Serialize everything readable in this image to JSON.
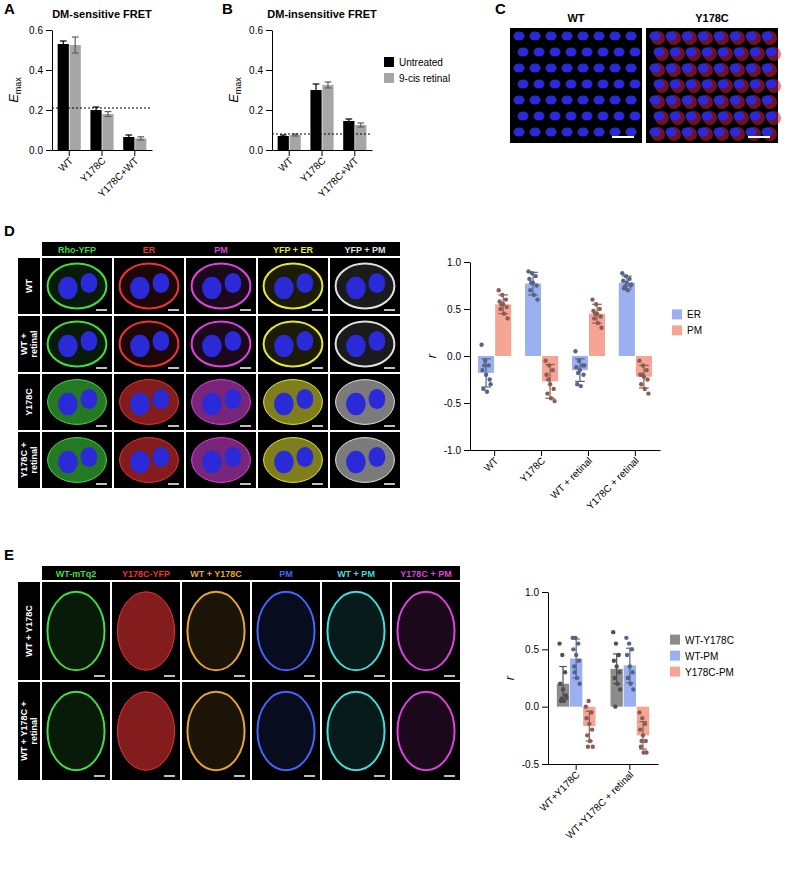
{
  "chart_data": [
    {
      "type": "bar",
      "panel": "A",
      "title": "DM-sensitive FRET",
      "ylabel": "E",
      "ylabel_sub": "max",
      "categories": [
        "WT",
        "Y178C",
        "Y178C+WT"
      ],
      "series": [
        {
          "color": "#000000",
          "values": [
            0.53,
            0.2,
            0.065
          ],
          "errors": [
            0.015,
            0.015,
            0.01
          ]
        },
        {
          "color": "#a6a6a6",
          "values": [
            0.525,
            0.18,
            0.058
          ],
          "errors": [
            0.04,
            0.012,
            0.008
          ]
        }
      ],
      "reference": 0.21,
      "ylim": [
        0,
        0.6
      ],
      "yticks": [
        {
          "value": 0,
          "label": "0.0"
        },
        {
          "value": 0.2,
          "label": "0.2"
        },
        {
          "value": 0.4,
          "label": "0.4"
        },
        {
          "value": 0.6,
          "label": "0.6"
        }
      ]
    },
    {
      "type": "bar",
      "panel": "B",
      "title": "DM-insensitive FRET",
      "ylabel": "E",
      "ylabel_sub": "max",
      "categories": [
        "WT",
        "Y178C",
        "Y178C+WT"
      ],
      "series": [
        {
          "name": "Untreated",
          "color": "#000000",
          "values": [
            0.07,
            0.3,
            0.145
          ],
          "errors": [
            0.005,
            0.03,
            0.01
          ]
        },
        {
          "name": "9-cis retinal",
          "color": "#a6a6a6",
          "values": [
            0.075,
            0.325,
            0.125
          ],
          "errors": [
            0.005,
            0.015,
            0.01
          ]
        }
      ],
      "reference": 0.08,
      "legend": "right",
      "ylim": [
        0,
        0.6
      ],
      "yticks": [
        {
          "value": 0,
          "label": "0.0"
        },
        {
          "value": 0.2,
          "label": "0.2"
        },
        {
          "value": 0.4,
          "label": "0.4"
        },
        {
          "value": 0.6,
          "label": "0.6"
        }
      ]
    },
    {
      "type": "bar",
      "ylabel": "r",
      "categories": [
        "WT",
        "Y178C",
        "WT + retinal",
        "Y178C + retinal"
      ],
      "series": [
        {
          "name": "ER",
          "color": "#9bb0f0",
          "values": [
            -0.18,
            0.77,
            -0.15,
            0.78
          ],
          "errors": [
            0.15,
            0.12,
            0.12,
            0.07
          ],
          "points": [
            [
              0.12,
              -0.05,
              -0.1,
              -0.15,
              -0.2,
              -0.25,
              -0.35,
              -0.38,
              -0.3,
              -0.1
            ],
            [
              0.9,
              0.88,
              0.85,
              0.82,
              0.78,
              0.75,
              0.7,
              0.65,
              0.6,
              0.78
            ],
            [
              0.05,
              -0.05,
              -0.1,
              -0.12,
              -0.15,
              -0.2,
              -0.3,
              -0.32,
              -0.1,
              -0.18
            ],
            [
              0.88,
              0.85,
              0.82,
              0.8,
              0.78,
              0.75,
              0.72,
              0.7,
              0.76,
              0.74
            ]
          ]
        },
        {
          "name": "PM",
          "color": "#f6a594",
          "values": [
            0.55,
            -0.27,
            0.45,
            -0.22
          ],
          "errors": [
            0.1,
            0.18,
            0.1,
            0.12
          ],
          "points": [
            [
              0.7,
              0.65,
              0.6,
              0.58,
              0.55,
              0.52,
              0.5,
              0.45,
              0.4,
              0.55
            ],
            [
              -0.05,
              -0.1,
              -0.15,
              -0.2,
              -0.3,
              -0.35,
              -0.4,
              -0.45,
              -0.48,
              -0.25
            ],
            [
              0.6,
              0.55,
              0.5,
              0.48,
              0.45,
              0.42,
              0.4,
              0.35,
              0.3,
              0.45
            ],
            [
              -0.05,
              -0.1,
              -0.15,
              -0.2,
              -0.22,
              -0.25,
              -0.3,
              -0.35,
              -0.4,
              -0.2
            ]
          ]
        }
      ],
      "legend": "right",
      "ylim": [
        -1,
        1
      ],
      "yticks": [
        {
          "value": -1,
          "label": "-1.0"
        },
        {
          "value": -0.5,
          "label": "-0.5"
        },
        {
          "value": 0,
          "label": "0.0"
        },
        {
          "value": 0.5,
          "label": "0.5"
        },
        {
          "value": 1,
          "label": "1.0"
        }
      ]
    },
    {
      "type": "bar",
      "ylabel": "r",
      "categories": [
        "WT+Y178C",
        "WT+Y178C + retinal"
      ],
      "series": [
        {
          "name": "WT-Y178C",
          "color": "#8c8c8c",
          "values": [
            0.2,
            0.33
          ],
          "errors": [
            0.15,
            0.13
          ],
          "points": [
            [
              0.55,
              0.45,
              0.3,
              0.2,
              0.15,
              0.1,
              0.05,
              0.05,
              0.08,
              0.07
            ],
            [
              0.65,
              0.55,
              0.45,
              0.4,
              0.35,
              0.3,
              0.25,
              0.2,
              0.15,
              0.0
            ]
          ]
        },
        {
          "name": "WT-PM",
          "color": "#9bb0f0",
          "values": [
            0.42,
            0.36
          ],
          "errors": [
            0.17,
            0.15
          ],
          "points": [
            [
              0.6,
              0.6,
              0.55,
              0.5,
              0.45,
              0.4,
              0.35,
              0.25,
              0.2,
              0.3
            ],
            [
              0.6,
              0.55,
              0.5,
              0.45,
              0.35,
              0.3,
              0.25,
              0.2,
              0.15,
              0.25
            ]
          ]
        },
        {
          "name": "Y178C-PM",
          "color": "#f6a594",
          "values": [
            -0.17,
            -0.25
          ],
          "errors": [
            0.13,
            0.12
          ],
          "points": [
            [
              0.0,
              0.05,
              -0.05,
              -0.1,
              -0.15,
              -0.2,
              -0.25,
              -0.3,
              -0.35,
              -0.35
            ],
            [
              -0.05,
              -0.1,
              -0.15,
              -0.2,
              -0.25,
              -0.3,
              -0.35,
              -0.4,
              -0.4,
              -0.3
            ]
          ]
        }
      ],
      "legend": "right",
      "ylim": [
        -0.5,
        1
      ],
      "yticks": [
        {
          "value": -0.5,
          "label": "-0.5"
        },
        {
          "value": 0,
          "label": "0.0"
        },
        {
          "value": 0.5,
          "label": "0.5"
        },
        {
          "value": 1,
          "label": "1.0"
        }
      ]
    }
  ],
  "image_panels": [
    {
      "panel": "C",
      "columns": [
        "WT",
        "Y178C"
      ]
    },
    {
      "panel": "D",
      "columns": [
        "Rho-YFP",
        "ER",
        "PM",
        "YFP + ER",
        "YFP + PM"
      ],
      "rows": [
        "WT",
        "WT + retinal",
        "Y178C",
        "Y178C + retinal"
      ]
    },
    {
      "panel": "E",
      "columns": [
        "WT-mTq2",
        "Y178C-YFP",
        "WT + Y178C",
        "PM",
        "WT + PM",
        "Y178C + PM"
      ],
      "rows": [
        "WT + Y178C",
        "WT + Y178C + retinal"
      ]
    }
  ]
}
